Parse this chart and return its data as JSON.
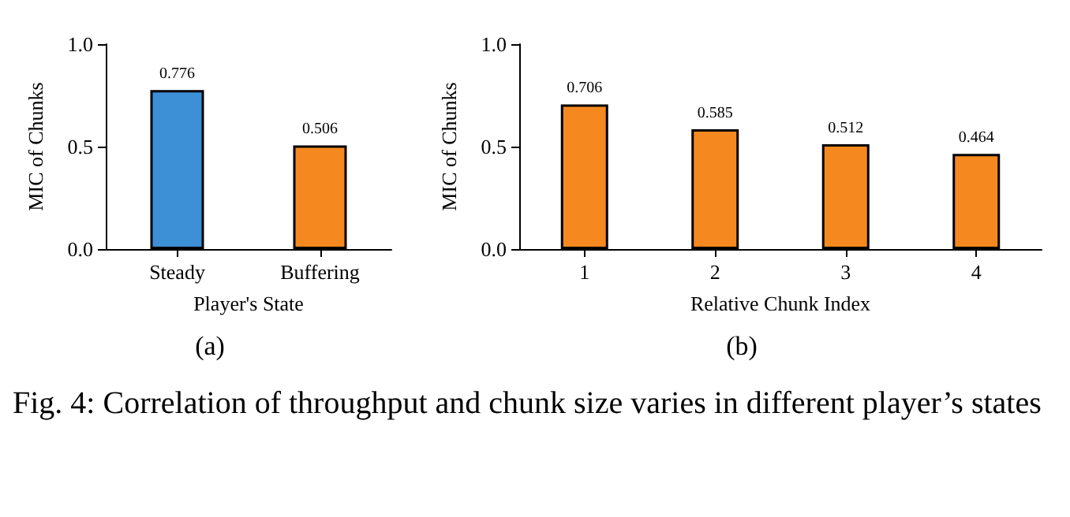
{
  "chart_data": [
    {
      "type": "bar",
      "categories": [
        "Steady",
        "Buffering"
      ],
      "xlabel": "Player's State",
      "ylabel": "MIC of Chunks",
      "values": [
        0.776,
        0.506
      ],
      "colors": [
        "#3d8fd6",
        "#f5891f"
      ],
      "ylim": [
        0,
        1
      ],
      "yticks": [
        {
          "value": 0,
          "label": "0.0"
        },
        {
          "value": 0.5,
          "label": "0.5"
        },
        {
          "value": 1,
          "label": "1.0"
        }
      ],
      "grid": false,
      "data_labels": true,
      "annotations": [
        "(a)",
        "Fig. 4: Correlation of throughput and chunk size varies in different player’s states"
      ]
    },
    {
      "type": "bar",
      "categories": [
        "1",
        "2",
        "3",
        "4"
      ],
      "xlabel": "Relative Chunk Index",
      "ylabel": "MIC of Chunks",
      "values": [
        0.706,
        0.585,
        0.512,
        0.464
      ],
      "color": "#f5891f",
      "ylim": [
        0,
        1
      ],
      "yticks": [
        {
          "value": 0,
          "label": "0.0"
        },
        {
          "value": 0.5,
          "label": "0.5"
        },
        {
          "value": 1,
          "label": "1.0"
        }
      ],
      "grid": false,
      "data_labels": true,
      "annotations": [
        "(b)"
      ]
    }
  ]
}
